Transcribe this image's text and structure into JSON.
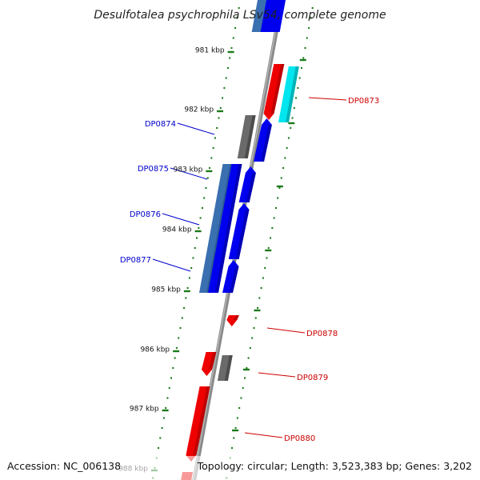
{
  "title": "Desulfotalea psychrophila LSv54, complete genome",
  "footer": {
    "accession": "Accession: NC_006138",
    "topology": "Topology: circular; Length: 3,523,383 bp; Genes: 3,202"
  },
  "colors": {
    "backbone": "#8a8a8a",
    "tick": "#1a7a1a",
    "forward_gene": "#0000ee",
    "forward_gene_alt": "#3a6fb0",
    "reverse_gene": "#ee0000",
    "reverse_gene_alt": "#00e5ee",
    "other_gene": "#6a6a6a",
    "forward_label": "#0000cc",
    "reverse_label": "#cc0000"
  },
  "chart_data": {
    "type": "genome_map",
    "units": "kbp",
    "scale_marks": [
      "981 kbp",
      "982 kbp",
      "983 kbp",
      "984 kbp",
      "985 kbp",
      "986 kbp",
      "987 kbp",
      "988 kbp"
    ],
    "genes": [
      {
        "label": "DP0873",
        "strand": "reverse"
      },
      {
        "label": "DP0874",
        "strand": "forward"
      },
      {
        "label": "DP0875",
        "strand": "forward"
      },
      {
        "label": "DP0876",
        "strand": "forward"
      },
      {
        "label": "DP0877",
        "strand": "forward"
      },
      {
        "label": "DP0878",
        "strand": "reverse"
      },
      {
        "label": "DP0879",
        "strand": "reverse"
      },
      {
        "label": "DP0880",
        "strand": "reverse"
      }
    ]
  }
}
